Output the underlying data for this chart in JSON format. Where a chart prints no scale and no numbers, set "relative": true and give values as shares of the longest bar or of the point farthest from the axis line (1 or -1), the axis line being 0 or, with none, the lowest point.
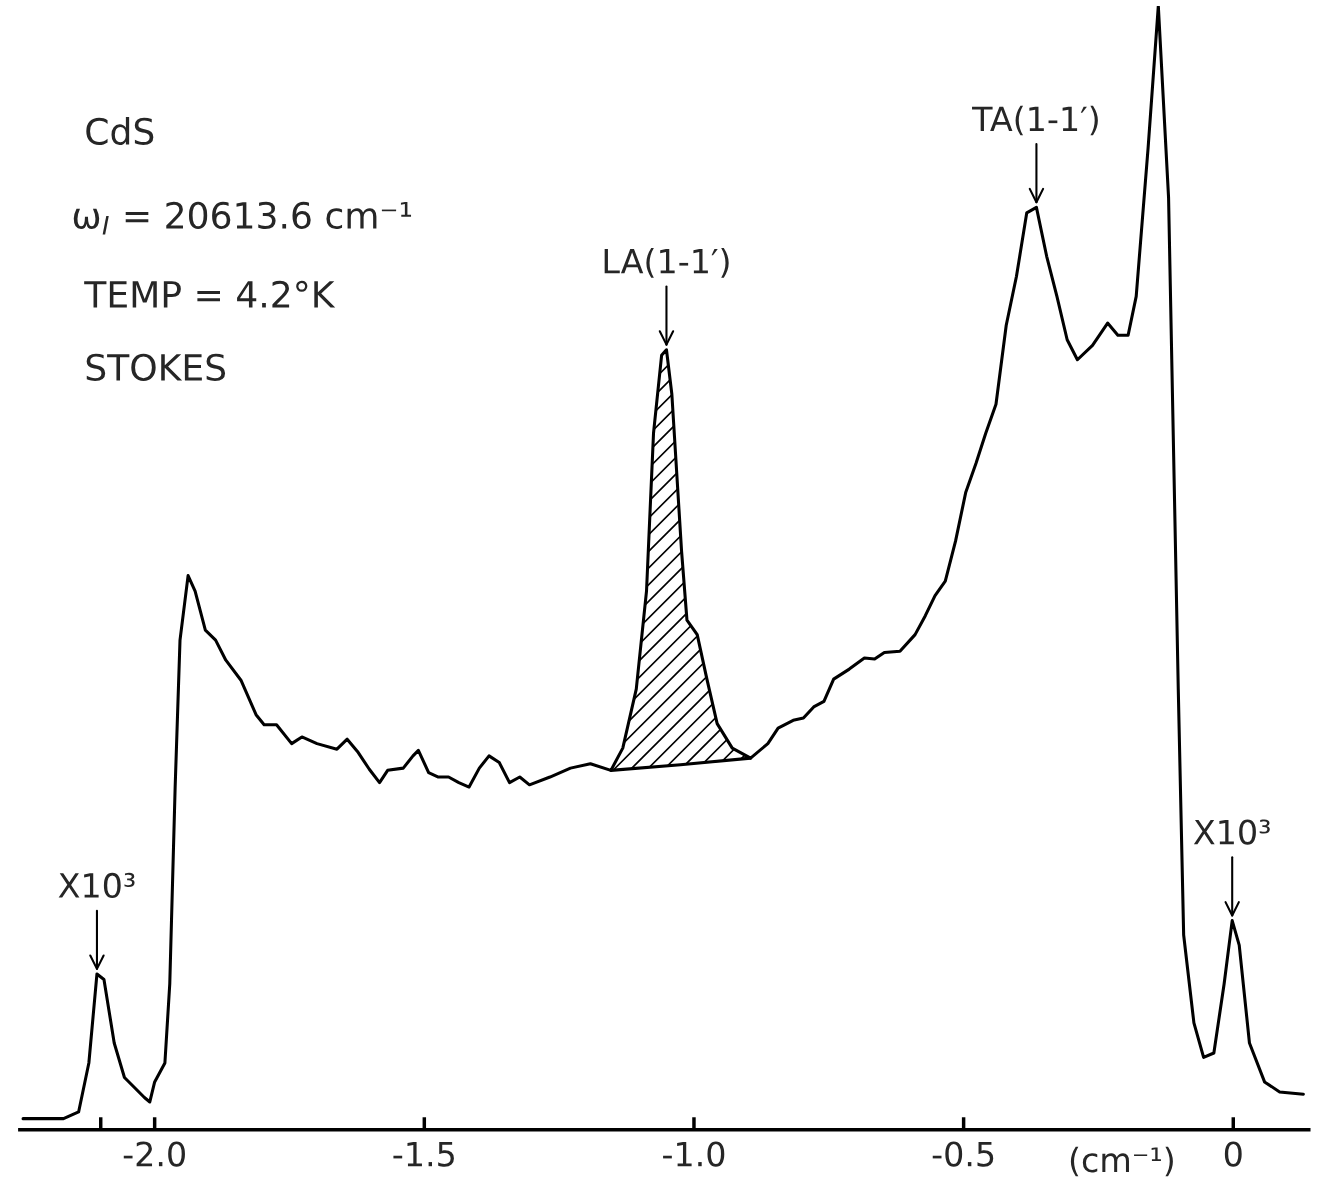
{
  "chart_data": {
    "type": "line",
    "relative": true,
    "xlabel": "(cm⁻¹)",
    "xlim": [
      -2.25,
      0.14
    ],
    "xticks": [
      {
        "value": -2.1,
        "label": null
      },
      {
        "value": -2.0,
        "label": "-2.0"
      },
      {
        "value": -1.5,
        "label": "-1.5"
      },
      {
        "value": -1.0,
        "label": "-1.0"
      },
      {
        "value": -0.5,
        "label": "-0.5"
      },
      {
        "value": 0,
        "label": "0"
      }
    ],
    "grid": false,
    "series": [
      {
        "color": "#000000",
        "x": [
          -2.244,
          -2.169,
          -2.141,
          -2.122,
          -2.107,
          -2.094,
          -2.075,
          -2.056,
          -2.019,
          -2.009,
          -2.0,
          -1.981,
          -1.972,
          -1.962,
          -1.953,
          -1.938,
          -1.925,
          -1.906,
          -1.887,
          -1.868,
          -1.84,
          -1.812,
          -1.797,
          -1.774,
          -1.746,
          -1.727,
          -1.699,
          -1.662,
          -1.643,
          -1.624,
          -1.602,
          -1.583,
          -1.568,
          -1.539,
          -1.521,
          -1.511,
          -1.492,
          -1.474,
          -1.455,
          -1.436,
          -1.417,
          -1.398,
          -1.38,
          -1.361,
          -1.342,
          -1.323,
          -1.305,
          -1.267,
          -1.229,
          -1.192,
          -1.154,
          -1.132,
          -1.107,
          -1.088,
          -1.075,
          -1.06,
          -1.051,
          -1.041,
          -1.023,
          -1.013,
          -0.994,
          -0.976,
          -0.957,
          -0.929,
          -0.895,
          -0.863,
          -0.844,
          -0.816,
          -0.797,
          -0.778,
          -0.759,
          -0.741,
          -0.712,
          -0.684,
          -0.665,
          -0.647,
          -0.618,
          -0.59,
          -0.571,
          -0.553,
          -0.534,
          -0.515,
          -0.496,
          -0.477,
          -0.459,
          -0.44,
          -0.421,
          -0.402,
          -0.383,
          -0.365,
          -0.346,
          -0.327,
          -0.308,
          -0.289,
          -0.261,
          -0.233,
          -0.214,
          -0.195,
          -0.18,
          -0.158,
          -0.139,
          -0.12,
          -0.102,
          -0.092,
          -0.073,
          -0.055,
          -0.036,
          -0.017,
          -0.002,
          0.011,
          0.03,
          0.058,
          0.086,
          0.13
        ],
        "values": [
          0,
          0,
          0.006,
          0.05,
          0.13,
          0.125,
          0.068,
          0.037,
          0.019,
          0.015,
          0.033,
          0.05,
          0.121,
          0.298,
          0.43,
          0.488,
          0.474,
          0.439,
          0.43,
          0.412,
          0.394,
          0.363,
          0.354,
          0.354,
          0.337,
          0.343,
          0.337,
          0.332,
          0.341,
          0.33,
          0.314,
          0.302,
          0.313,
          0.315,
          0.326,
          0.331,
          0.311,
          0.307,
          0.307,
          0.302,
          0.298,
          0.315,
          0.326,
          0.32,
          0.302,
          0.307,
          0.3,
          0.307,
          0.315,
          0.319,
          0.313,
          0.333,
          0.386,
          0.474,
          0.616,
          0.686,
          0.691,
          0.651,
          0.51,
          0.448,
          0.435,
          0.395,
          0.355,
          0.333,
          0.324,
          0.337,
          0.351,
          0.358,
          0.36,
          0.37,
          0.375,
          0.395,
          0.404,
          0.414,
          0.413,
          0.419,
          0.42,
          0.435,
          0.452,
          0.47,
          0.483,
          0.519,
          0.563,
          0.589,
          0.616,
          0.642,
          0.713,
          0.757,
          0.814,
          0.819,
          0.775,
          0.739,
          0.7,
          0.682,
          0.695,
          0.715,
          0.704,
          0.704,
          0.739,
          0.872,
          1,
          0.828,
          0.386,
          0.165,
          0.086,
          0.055,
          0.059,
          0.121,
          0.178,
          0.156,
          0.068,
          0.033,
          0.024,
          0.022
        ]
      },
      {
        "type": "area",
        "color": "#000000",
        "x": [
          -1.154,
          -1.132,
          -1.107,
          -1.088,
          -1.075,
          -1.06,
          -1.051,
          -1.041,
          -1.023,
          -1.013,
          -0.994,
          -0.976,
          -0.957,
          -0.929,
          -0.895
        ],
        "values": [
          0.313,
          0.333,
          0.386,
          0.474,
          0.616,
          0.686,
          0.691,
          0.651,
          0.51,
          0.448,
          0.435,
          0.395,
          0.355,
          0.333,
          0.324
        ]
      },
      {
        "type": "line",
        "color": "#000000",
        "x": [
          -1.154,
          -1.025,
          -0.895
        ],
        "values": [
          0.313,
          0.318,
          0.324
        ]
      }
    ],
    "annotations": [
      "CdS",
      "ω$_{I}$ = 20613.6 cm⁻¹",
      "TEMP = 4.2°K",
      "STOKES",
      {
        "text": "LA(1-1′)",
        "x": -1.051,
        "y": 0.691
      },
      {
        "text": "TA(1-1′)",
        "x": -0.365,
        "y": 0.819
      },
      {
        "text": "X10³",
        "x": -2.107,
        "y": 0.13
      },
      {
        "text": "X10³",
        "x": -0.002,
        "y": 0.178
      }
    ]
  }
}
